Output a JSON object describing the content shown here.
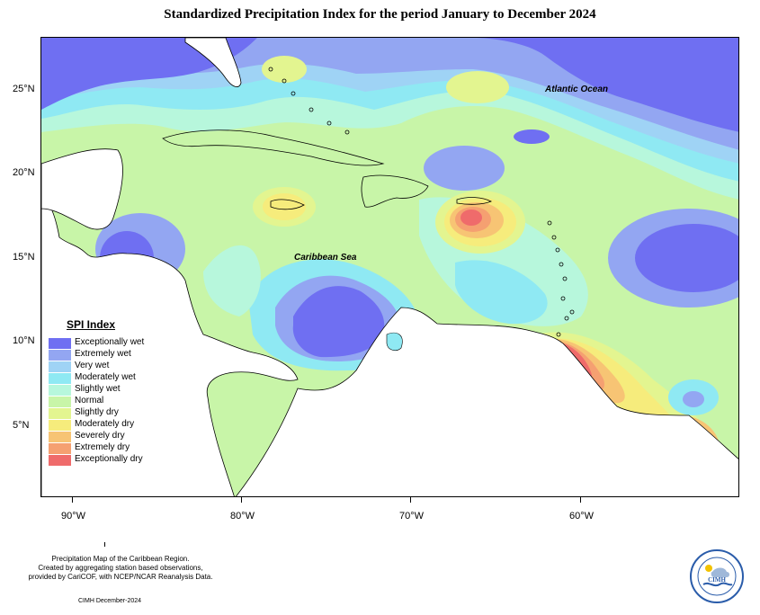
{
  "title": "Standardized Precipitation Index for the period January to December 2024",
  "axes": {
    "y_ticks": [
      "25°N",
      "20°N",
      "15°N",
      "10°N",
      "5°N"
    ],
    "x_ticks": [
      "90°W",
      "80°W",
      "70°W",
      "60°W"
    ]
  },
  "map_labels": {
    "atlantic": "Atlantic Ocean",
    "caribbean": "Caribbean Sea"
  },
  "legend": {
    "title": "SPI Index",
    "items": [
      {
        "label": "Exceptionally wet",
        "color": "#6f6ff2"
      },
      {
        "label": "Extremely wet",
        "color": "#93a6f2"
      },
      {
        "label": "Very wet",
        "color": "#9fd3f5"
      },
      {
        "label": "Moderately wet",
        "color": "#8fe9f3"
      },
      {
        "label": "Slightly wet",
        "color": "#b7f7dc"
      },
      {
        "label": "Normal",
        "color": "#c8f5a8"
      },
      {
        "label": "Slightly dry",
        "color": "#e3f590"
      },
      {
        "label": "Moderately dry",
        "color": "#f6ec7c"
      },
      {
        "label": "Severely dry",
        "color": "#f7c474"
      },
      {
        "label": "Extremely dry",
        "color": "#f5a071"
      },
      {
        "label": "Exceptionally dry",
        "color": "#ef6b6b"
      }
    ]
  },
  "footnote": [
    "Precipitation Map of the Caribbean Region.",
    "Created by aggregating station based observations,",
    "provided by CariCOF, with NCEP/NCAR Reanalysis Data."
  ],
  "credit": "CIMH December-2024",
  "logo_text": "CIMH"
}
